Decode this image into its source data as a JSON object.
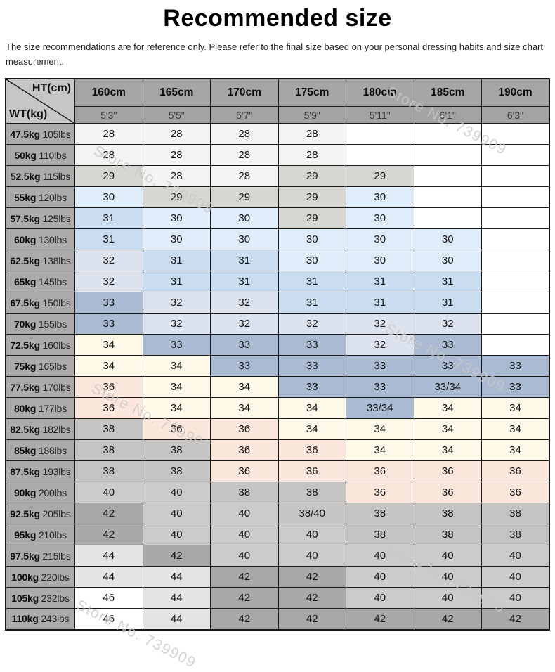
{
  "disclaimer": "The size recommendations are for reference only. Please refer to the final size based on your personal dressing habits and size chart measurement.",
  "watermark": "Store No. 739909",
  "size_colors": {
    "28": "#f4f3f1",
    "29": "#d8d6d3",
    "30": "#dfecf9",
    "31": "#c9dcf0",
    "32": "#dce3ee",
    "33": "#a9bad2",
    "33/34": "#a9bad2",
    "34": "#fdf8e8",
    "36": "#fbe6dc",
    "38": "#c5c4c2",
    "38/40": "#c6c5c3",
    "40": "#cccbc9",
    "42": "#a9a8a6",
    "44": "#e5e4e2",
    "46": "#ffffff",
    "": "#ffffff"
  },
  "chart_data": {
    "type": "table",
    "title": "Recommended size",
    "corner_top_right": "HT(cm)",
    "corner_bottom_left": "WT(kg)",
    "columns": [
      {
        "cm": "160cm",
        "ft": "5'3\""
      },
      {
        "cm": "165cm",
        "ft": "5'5\""
      },
      {
        "cm": "170cm",
        "ft": "5'7\""
      },
      {
        "cm": "175cm",
        "ft": "5'9\""
      },
      {
        "cm": "180cm",
        "ft": "5'11\""
      },
      {
        "cm": "185cm",
        "ft": "6'1\""
      },
      {
        "cm": "190cm",
        "ft": "6'3\""
      }
    ],
    "rows": [
      {
        "kg": "47.5kg",
        "lbs": "105lbs",
        "sizes": [
          "28",
          "28",
          "28",
          "28",
          "",
          "",
          ""
        ]
      },
      {
        "kg": "50kg",
        "lbs": "110lbs",
        "sizes": [
          "28",
          "28",
          "28",
          "28",
          "",
          "",
          ""
        ]
      },
      {
        "kg": "52.5kg",
        "lbs": "115lbs",
        "sizes": [
          "29",
          "28",
          "28",
          "29",
          "29",
          "",
          ""
        ]
      },
      {
        "kg": "55kg",
        "lbs": "120lbs",
        "sizes": [
          "30",
          "29",
          "29",
          "29",
          "30",
          "",
          ""
        ]
      },
      {
        "kg": "57.5kg",
        "lbs": "125lbs",
        "sizes": [
          "31",
          "30",
          "30",
          "29",
          "30",
          "",
          ""
        ]
      },
      {
        "kg": "60kg",
        "lbs": "130lbs",
        "sizes": [
          "31",
          "30",
          "30",
          "30",
          "30",
          "30",
          ""
        ]
      },
      {
        "kg": "62.5kg",
        "lbs": "138lbs",
        "sizes": [
          "32",
          "31",
          "31",
          "30",
          "30",
          "30",
          ""
        ]
      },
      {
        "kg": "65kg",
        "lbs": "145lbs",
        "sizes": [
          "32",
          "31",
          "31",
          "31",
          "31",
          "31",
          ""
        ]
      },
      {
        "kg": "67.5kg",
        "lbs": "150lbs",
        "sizes": [
          "33",
          "32",
          "32",
          "31",
          "31",
          "31",
          ""
        ]
      },
      {
        "kg": "70kg",
        "lbs": "155lbs",
        "sizes": [
          "33",
          "32",
          "32",
          "32",
          "32",
          "32",
          ""
        ]
      },
      {
        "kg": "72.5kg",
        "lbs": "160lbs",
        "sizes": [
          "34",
          "33",
          "33",
          "33",
          "32",
          "33",
          ""
        ]
      },
      {
        "kg": "75kg",
        "lbs": "165lbs",
        "sizes": [
          "34",
          "34",
          "33",
          "33",
          "33",
          "33",
          "33"
        ]
      },
      {
        "kg": "77.5kg",
        "lbs": "170lbs",
        "sizes": [
          "36",
          "34",
          "34",
          "33",
          "33",
          "33/34",
          "33"
        ]
      },
      {
        "kg": "80kg",
        "lbs": "177lbs",
        "sizes": [
          "36",
          "34",
          "34",
          "34",
          "33/34",
          "34",
          "34"
        ]
      },
      {
        "kg": "82.5kg",
        "lbs": "182lbs",
        "sizes": [
          "38",
          "36",
          "36",
          "34",
          "34",
          "34",
          "34"
        ]
      },
      {
        "kg": "85kg",
        "lbs": "188lbs",
        "sizes": [
          "38",
          "38",
          "36",
          "36",
          "34",
          "34",
          "34"
        ]
      },
      {
        "kg": "87.5kg",
        "lbs": "193lbs",
        "sizes": [
          "38",
          "38",
          "36",
          "36",
          "36",
          "36",
          "36"
        ]
      },
      {
        "kg": "90kg",
        "lbs": "200lbs",
        "sizes": [
          "40",
          "40",
          "38",
          "38",
          "36",
          "36",
          "36"
        ]
      },
      {
        "kg": "92.5kg",
        "lbs": "205lbs",
        "sizes": [
          "42",
          "40",
          "40",
          "38/40",
          "38",
          "38",
          "38"
        ]
      },
      {
        "kg": "95kg",
        "lbs": "210lbs",
        "sizes": [
          "42",
          "40",
          "40",
          "40",
          "38",
          "38",
          "38"
        ]
      },
      {
        "kg": "97.5kg",
        "lbs": "215lbs",
        "sizes": [
          "44",
          "42",
          "40",
          "40",
          "40",
          "40",
          "40"
        ]
      },
      {
        "kg": "100kg",
        "lbs": "220lbs",
        "sizes": [
          "44",
          "44",
          "42",
          "42",
          "40",
          "40",
          "40"
        ]
      },
      {
        "kg": "105kg",
        "lbs": "232lbs",
        "sizes": [
          "46",
          "44",
          "42",
          "42",
          "40",
          "40",
          "40"
        ]
      },
      {
        "kg": "110kg",
        "lbs": "243lbs",
        "sizes": [
          "46",
          "44",
          "42",
          "42",
          "42",
          "42",
          "42"
        ]
      }
    ]
  }
}
